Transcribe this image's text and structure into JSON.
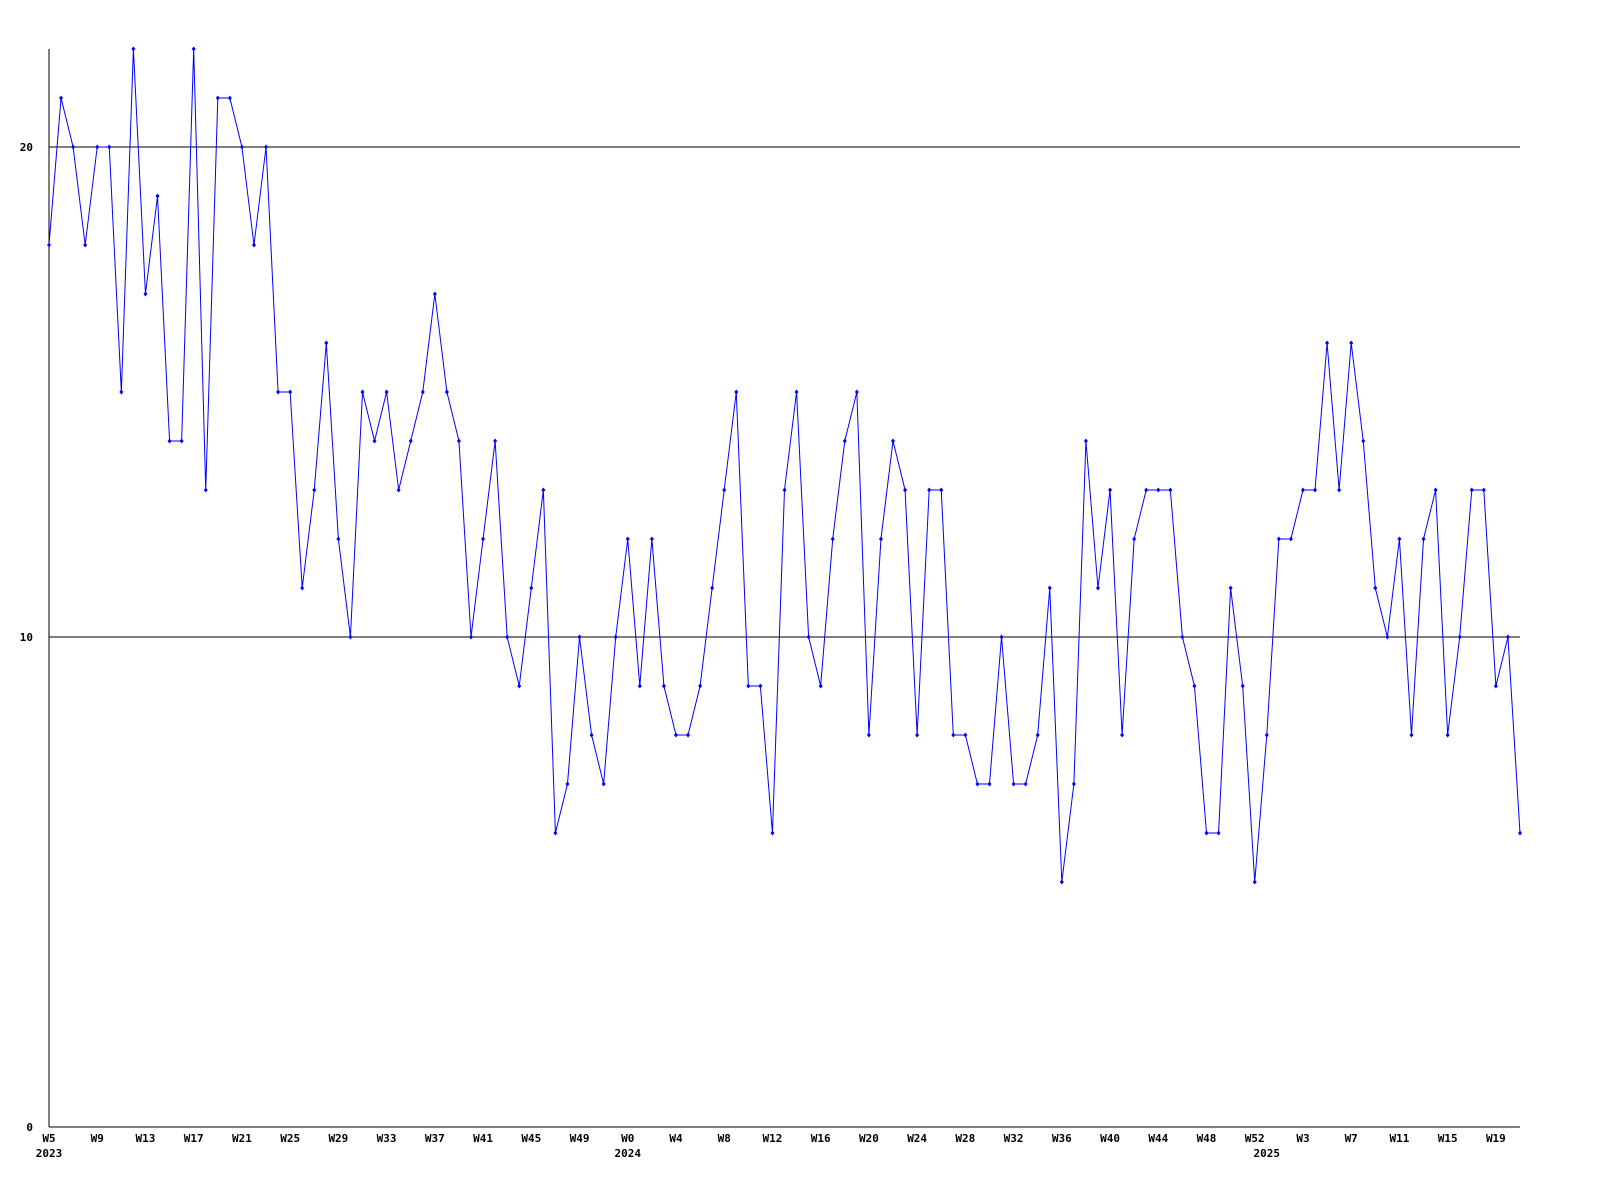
{
  "chart_data": {
    "type": "line",
    "categories": [
      "W5",
      null,
      null,
      null,
      "W9",
      null,
      null,
      null,
      "W13",
      null,
      null,
      null,
      "W17",
      null,
      null,
      null,
      "W21",
      null,
      null,
      null,
      "W25",
      null,
      null,
      null,
      "W29",
      null,
      null,
      null,
      "W33",
      null,
      null,
      null,
      "W37",
      null,
      null,
      null,
      "W41",
      null,
      null,
      null,
      "W45",
      null,
      null,
      null,
      "W49",
      null,
      null,
      null,
      "W0",
      null,
      null,
      null,
      "W4",
      null,
      null,
      null,
      "W8",
      null,
      null,
      null,
      "W12",
      null,
      null,
      null,
      "W16",
      null,
      null,
      null,
      "W20",
      null,
      null,
      null,
      "W24",
      null,
      null,
      null,
      "W28",
      null,
      null,
      null,
      "W32",
      null,
      null,
      null,
      "W36",
      null,
      null,
      null,
      "W40",
      null,
      null,
      null,
      "W44",
      null,
      null,
      null,
      "W48",
      null,
      null,
      null,
      "W52",
      null,
      null,
      null,
      "W3",
      null,
      null,
      null,
      "W7",
      null,
      null,
      null,
      "W11",
      null,
      null,
      null,
      "W15",
      null,
      null,
      null,
      "W19",
      null,
      null
    ],
    "category_years": [
      "2023",
      null,
      null,
      null,
      null,
      null,
      null,
      null,
      null,
      null,
      null,
      null,
      null,
      null,
      null,
      null,
      null,
      null,
      null,
      null,
      null,
      null,
      null,
      null,
      null,
      null,
      null,
      null,
      null,
      null,
      null,
      null,
      null,
      null,
      null,
      null,
      null,
      null,
      null,
      null,
      null,
      null,
      null,
      null,
      null,
      null,
      null,
      null,
      "2024",
      null,
      null,
      null,
      null,
      null,
      null,
      null,
      null,
      null,
      null,
      null,
      null,
      null,
      null,
      null,
      null,
      null,
      null,
      null,
      null,
      null,
      null,
      null,
      null,
      null,
      null,
      null,
      null,
      null,
      null,
      null,
      null,
      null,
      null,
      null,
      null,
      null,
      null,
      null,
      null,
      null,
      null,
      null,
      null,
      null,
      null,
      null,
      null,
      null,
      null,
      null,
      null,
      "2025",
      null,
      null,
      null,
      null,
      null,
      null,
      null,
      null,
      null,
      null,
      null,
      null,
      null,
      null,
      null,
      null,
      null,
      null,
      null,
      null,
      null
    ],
    "series": [
      {
        "color": "#0000ff",
        "values": [
          18,
          21,
          20,
          18,
          20,
          20,
          15,
          22,
          17,
          19,
          14,
          14,
          22,
          13,
          21,
          21,
          20,
          18,
          20,
          15,
          15,
          11,
          13,
          16,
          12,
          10,
          15,
          14,
          15,
          13,
          14,
          15,
          17,
          15,
          14,
          10,
          12,
          14,
          10,
          9,
          11,
          13,
          6,
          7,
          10,
          8,
          7,
          10,
          12,
          9,
          12,
          9,
          8,
          8,
          9,
          11,
          13,
          15,
          9,
          9,
          6,
          13,
          15,
          10,
          9,
          12,
          14,
          15,
          8,
          12,
          14,
          13,
          8,
          13,
          13,
          8,
          8,
          7,
          7,
          10,
          7,
          7,
          8,
          11,
          5,
          7,
          14,
          11,
          13,
          8,
          12,
          13,
          13,
          13,
          10,
          9,
          6,
          6,
          11,
          9,
          5,
          8,
          12,
          12,
          13,
          13,
          16,
          13,
          16,
          14,
          11,
          10,
          12,
          8,
          12,
          13,
          8,
          10,
          13,
          13,
          9,
          10,
          6
        ]
      }
    ],
    "ylim": [
      0,
      22
    ],
    "yticks": [
      0,
      10,
      20
    ],
    "grid": true
  }
}
